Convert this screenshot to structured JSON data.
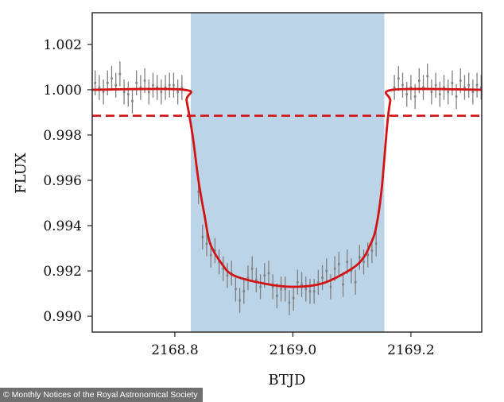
{
  "credit": "© Monthly Notices of the Royal Astronomical Society",
  "colors": {
    "shade": "#bcd4e8",
    "model": "#d21414",
    "points": "#7f7f7f",
    "axis": "#222222"
  },
  "chart_data": {
    "type": "scatter",
    "title": "",
    "xlabel": "BTJD",
    "ylabel": "FLUX",
    "xlim": [
      2168.66,
      2169.32
    ],
    "ylim": [
      0.9893,
      1.0034
    ],
    "xticks": [
      2168.8,
      2169.0,
      2169.2
    ],
    "xtick_labels": [
      "2168.8",
      "2169.0",
      "2169.2"
    ],
    "yticks": [
      0.99,
      0.992,
      0.994,
      0.996,
      0.998,
      1.0,
      1.002
    ],
    "ytick_labels": [
      "0.990",
      "0.992",
      "0.994",
      "0.996",
      "0.998",
      "1.000",
      "1.002"
    ],
    "grid": false,
    "shaded_region": [
      2168.827,
      2169.155
    ],
    "reference_level": 0.99885,
    "model_curve": {
      "x": [
        2168.66,
        2168.815,
        2168.82,
        2168.83,
        2168.84,
        2168.85,
        2168.86,
        2168.88,
        2168.9,
        2168.95,
        2169.0,
        2169.05,
        2169.1,
        2169.12,
        2169.13,
        2169.14,
        2169.15,
        2169.16,
        2169.165,
        2169.17,
        2169.32
      ],
      "y": [
        1.0,
        1.0,
        0.9995,
        0.998,
        0.996,
        0.9945,
        0.9932,
        0.9923,
        0.9918,
        0.99145,
        0.9913,
        0.99145,
        0.9921,
        0.9926,
        0.9931,
        0.9938,
        0.9955,
        0.9985,
        0.9995,
        1.0,
        1.0
      ]
    },
    "points": {
      "x": [
        2168.665,
        2168.672,
        2168.679,
        2168.686,
        2168.693,
        2168.7,
        2168.707,
        2168.714,
        2168.721,
        2168.728,
        2168.735,
        2168.742,
        2168.749,
        2168.756,
        2168.763,
        2168.77,
        2168.777,
        2168.784,
        2168.791,
        2168.798,
        2168.805,
        2168.812,
        2168.84,
        2168.847,
        2168.854,
        2168.861,
        2168.868,
        2168.875,
        2168.882,
        2168.889,
        2168.896,
        2168.903,
        2168.91,
        2168.917,
        2168.924,
        2168.931,
        2168.938,
        2168.945,
        2168.952,
        2168.959,
        2168.966,
        2168.973,
        2168.98,
        2168.987,
        2168.994,
        2169.001,
        2169.008,
        2169.015,
        2169.022,
        2169.029,
        2169.036,
        2169.043,
        2169.05,
        2169.057,
        2169.064,
        2169.071,
        2169.078,
        2169.085,
        2169.092,
        2169.099,
        2169.106,
        2169.113,
        2169.12,
        2169.127,
        2169.134,
        2169.141,
        2169.172,
        2169.179,
        2169.186,
        2169.193,
        2169.2,
        2169.207,
        2169.214,
        2169.221,
        2169.228,
        2169.235,
        2169.242,
        2169.249,
        2169.256,
        2169.263,
        2169.27,
        2169.277,
        2169.284,
        2169.291,
        2169.298,
        2169.305,
        2169.312,
        2169.319
      ],
      "y": [
        1.0003,
        1.0001,
        0.9999,
        1.0003,
        1.0005,
        1.0002,
        1.0007,
        0.9999,
        0.9998,
        0.9995,
        1.0003,
        1.0001,
        1.0004,
        0.9999,
        1.0002,
        1.0001,
        0.9999,
        1.0001,
        1.0002,
        1.0002,
        0.9999,
        1.0001,
        0.9955,
        0.9935,
        0.9932,
        0.9927,
        0.9929,
        0.9924,
        0.9921,
        0.9918,
        0.9919,
        0.9912,
        0.9907,
        0.9911,
        0.9917,
        0.9921,
        0.9916,
        0.9913,
        0.9918,
        0.9919,
        0.9913,
        0.9909,
        0.9912,
        0.9912,
        0.9906,
        0.9908,
        0.9915,
        0.9914,
        0.9912,
        0.9911,
        0.9911,
        0.9915,
        0.9917,
        0.992,
        0.9913,
        0.9921,
        0.9923,
        0.9914,
        0.9924,
        0.992,
        0.9915,
        0.9926,
        0.9924,
        0.9927,
        0.9929,
        0.9932,
        1.0001,
        1.0005,
        1.0002,
        0.9998,
        1.0001,
        0.9997,
        1.0004,
        1.0001,
        1.0006,
        0.9999,
        1.0002,
        0.9998,
        1.0001,
        0.9999,
        1.0003,
        0.9997,
        1.0004,
        1.0001,
        1.0002,
        0.9999,
        1.0002,
        1.0001
      ],
      "error": 0.00055
    }
  }
}
